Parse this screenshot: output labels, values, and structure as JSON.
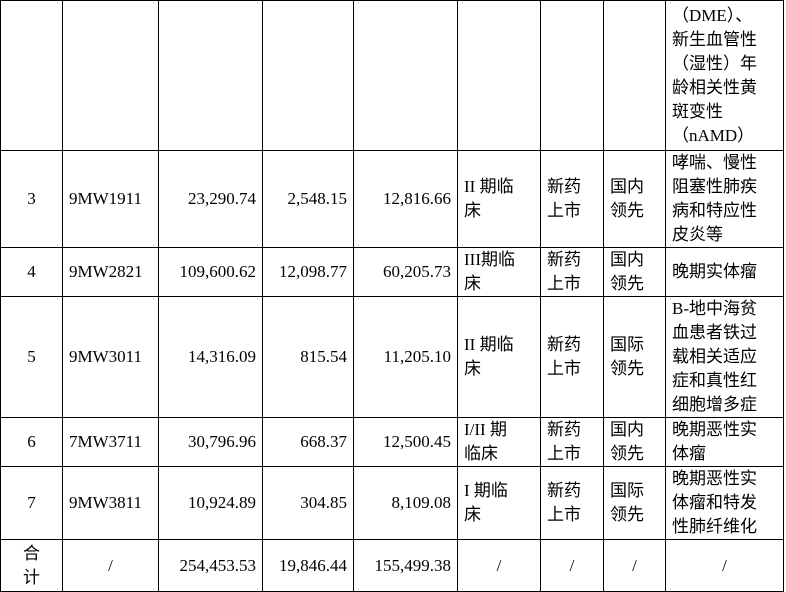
{
  "table": {
    "rows": [
      [
        null,
        null,
        null,
        null,
        null,
        null,
        null,
        null,
        "（DME）、\n新生血管性\n（湿性）年\n龄相关性黄\n斑变性\n（nAMD）"
      ],
      [
        "3",
        "9MW1911",
        "23,290.74",
        "2,548.15",
        "12,816.66",
        "II 期临\n床",
        "新药\n上市",
        "国内\n领先",
        "哮喘、慢性\n阻塞性肺疾\n病和特应性\n皮炎等"
      ],
      [
        "4",
        "9MW2821",
        "109,600.62",
        "12,098.77",
        "60,205.73",
        "III期临\n床",
        "新药\n上市",
        "国内\n领先",
        "晚期实体瘤"
      ],
      [
        "5",
        "9MW3011",
        "14,316.09",
        "815.54",
        "11,205.10",
        "II 期临\n床",
        "新药\n上市",
        "国际\n领先",
        "Β-地中海贫\n血患者铁过\n载相关适应\n症和真性红\n细胞增多症"
      ],
      [
        "6",
        "7MW3711",
        "30,796.96",
        "668.37",
        "12,500.45",
        "I/II 期\n临床",
        "新药\n上市",
        "国内\n领先",
        "晚期恶性实\n体瘤"
      ],
      [
        "7",
        "9MW3811",
        "10,924.89",
        "304.85",
        "8,109.08",
        "I 期临\n床",
        "新药\n上市",
        "国际\n领先",
        "晚期恶性实\n体瘤和特发\n性肺纤维化"
      ],
      [
        "合\n计",
        "/",
        "254,453.53",
        "19,846.44",
        "155,499.38",
        "/",
        "/",
        "/",
        "/"
      ]
    ]
  }
}
